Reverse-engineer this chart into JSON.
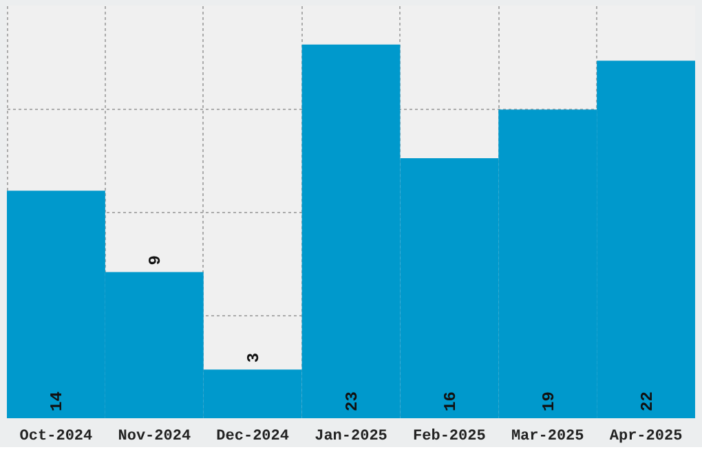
{
  "chart_data": {
    "type": "bar",
    "categories": [
      "Oct-2024",
      "Nov-2024",
      "Dec-2024",
      "Jan-2025",
      "Feb-2025",
      "Mar-2025",
      "Apr-2025"
    ],
    "values": [
      14,
      9,
      3,
      23,
      16,
      19,
      22
    ],
    "color": "#0099cc",
    "ylim": [
      0,
      25.4
    ],
    "yticks": [
      {
        "value": 6.35,
        "label": null
      },
      {
        "value": 12.7,
        "label": null
      },
      {
        "value": 19.05,
        "label": null
      }
    ],
    "tick_labels": "x",
    "grid": true,
    "data_labels": true
  }
}
